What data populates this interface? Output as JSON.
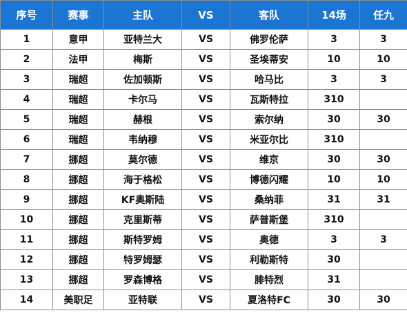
{
  "headers": [
    "序号",
    "赛事",
    "主队",
    "VS",
    "客队",
    "14场",
    "任九"
  ],
  "rows": [
    {
      "no": "1",
      "league": "意甲",
      "home": "亚特兰大",
      "vs": "VS",
      "away": "佛罗伦萨",
      "p14": "3",
      "r9": "3"
    },
    {
      "no": "2",
      "league": "法甲",
      "home": "梅斯",
      "vs": "VS",
      "away": "圣埃蒂安",
      "p14": "10",
      "r9": "10"
    },
    {
      "no": "3",
      "league": "瑞超",
      "home": "佐加顿斯",
      "vs": "VS",
      "away": "哈马比",
      "p14": "3",
      "r9": "3"
    },
    {
      "no": "4",
      "league": "瑞超",
      "home": "卡尔马",
      "vs": "VS",
      "away": "瓦斯特拉",
      "p14": "310",
      "r9": ""
    },
    {
      "no": "5",
      "league": "瑞超",
      "home": "赫根",
      "vs": "VS",
      "away": "索尔纳",
      "p14": "30",
      "r9": "30"
    },
    {
      "no": "6",
      "league": "瑞超",
      "home": "韦纳穆",
      "vs": "VS",
      "away": "米亚尔比",
      "p14": "310",
      "r9": ""
    },
    {
      "no": "7",
      "league": "挪超",
      "home": "莫尔德",
      "vs": "VS",
      "away": "维京",
      "p14": "30",
      "r9": "30"
    },
    {
      "no": "8",
      "league": "挪超",
      "home": "海于格松",
      "vs": "VS",
      "away": "博德闪耀",
      "p14": "10",
      "r9": "10"
    },
    {
      "no": "9",
      "league": "挪超",
      "home": "KF奥斯陆",
      "vs": "VS",
      "away": "桑纳菲",
      "p14": "31",
      "r9": "31"
    },
    {
      "no": "10",
      "league": "挪超",
      "home": "克里斯蒂",
      "vs": "VS",
      "away": "萨普斯堡",
      "p14": "310",
      "r9": ""
    },
    {
      "no": "11",
      "league": "挪超",
      "home": "斯特罗姆",
      "vs": "VS",
      "away": "奥德",
      "p14": "3",
      "r9": "3"
    },
    {
      "no": "12",
      "league": "挪超",
      "home": "特罗姆瑟",
      "vs": "VS",
      "away": "利勒斯特",
      "p14": "30",
      "r9": ""
    },
    {
      "no": "13",
      "league": "挪超",
      "home": "罗森博格",
      "vs": "VS",
      "away": "腓特烈",
      "p14": "31",
      "r9": ""
    },
    {
      "no": "14",
      "league": "美职足",
      "home": "亚特联",
      "vs": "VS",
      "away": "夏洛特FC",
      "p14": "30",
      "r9": "30"
    }
  ]
}
